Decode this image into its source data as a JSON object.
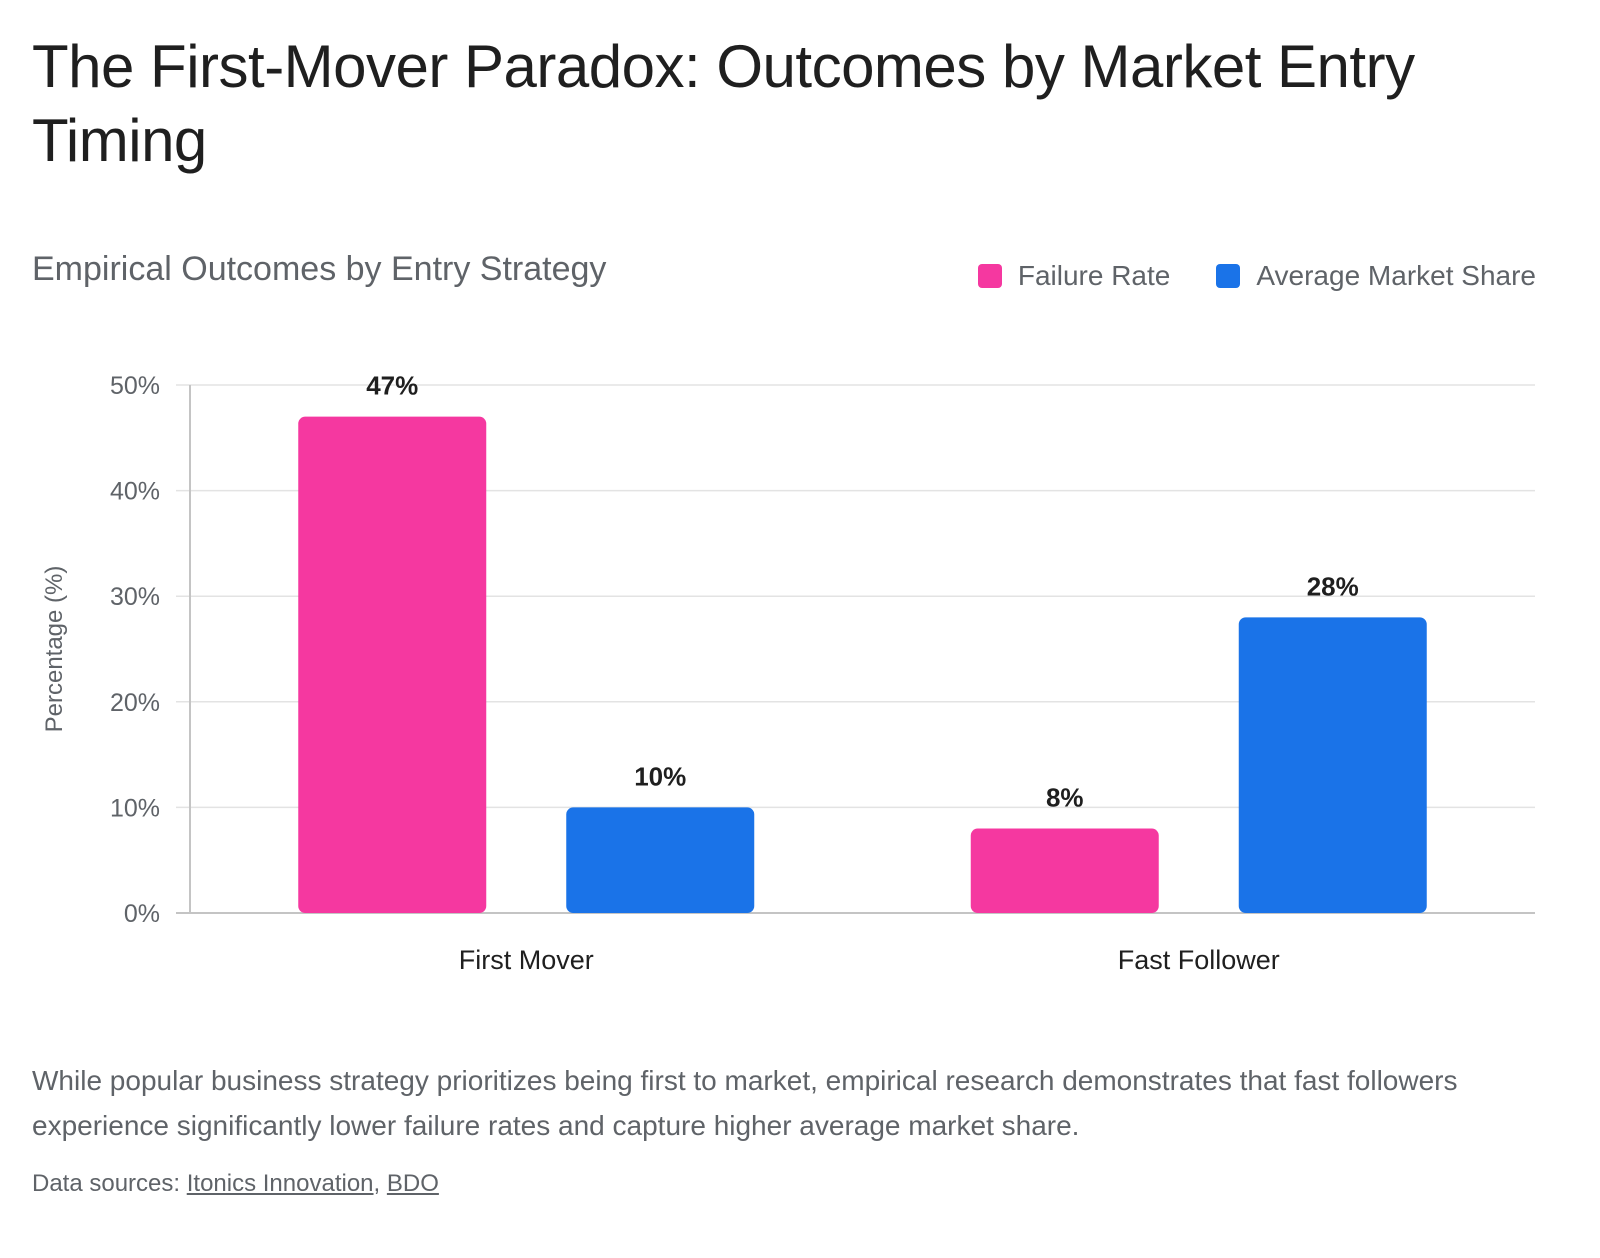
{
  "title": "The First-Mover Paradox: Outcomes by Market Entry Timing",
  "description": "While popular business strategy prioritizes being first to market, empirical research demonstrates that fast followers experience significantly lower failure rates and capture higher average market share.",
  "sources": {
    "prefix": "Data sources: ",
    "links": [
      "Itonics Innovation",
      "BDO"
    ],
    "separator": ", "
  },
  "chart_data": {
    "type": "bar",
    "title": "Empirical Outcomes by Entry Strategy",
    "xlabel": "",
    "ylabel": "Percentage (%)",
    "ylim": [
      0,
      50
    ],
    "yticks": [
      0,
      10,
      20,
      30,
      40,
      50
    ],
    "ytick_labels": [
      "0%",
      "10%",
      "20%",
      "30%",
      "40%",
      "50%"
    ],
    "categories": [
      "First Mover",
      "Fast Follower"
    ],
    "series": [
      {
        "name": "Failure Rate",
        "color": "#f538a0",
        "values": [
          47,
          8
        ],
        "labels": [
          "47%",
          "8%"
        ]
      },
      {
        "name": "Average Market Share",
        "color": "#1a73e8",
        "values": [
          10,
          28
        ],
        "labels": [
          "10%",
          "28%"
        ]
      }
    ],
    "grid": true,
    "legend": "top-right"
  }
}
